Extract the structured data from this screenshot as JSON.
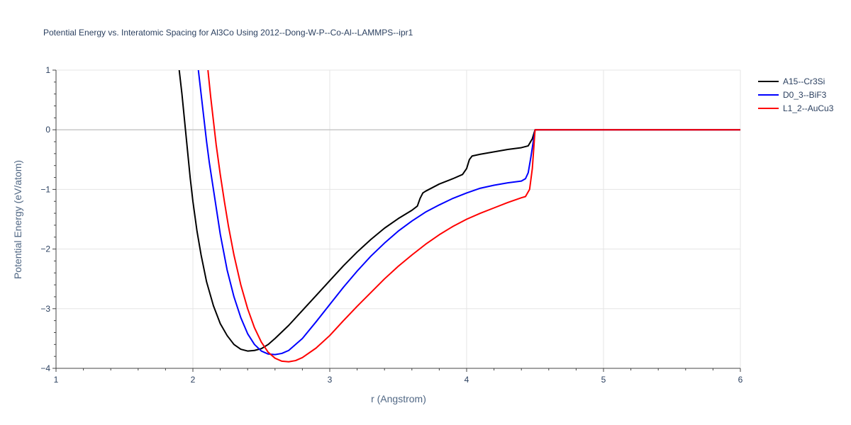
{
  "chart_data": {
    "type": "line",
    "title": "Potential Energy vs. Interatomic Spacing for Al3Co Using 2012--Dong-W-P--Co-Al--LAMMPS--ipr1",
    "xlabel": "r (Angstrom)",
    "ylabel": "Potential Energy (eV/atom)",
    "xlim": [
      1,
      6
    ],
    "ylim": [
      -4,
      1
    ],
    "xticks": [
      1,
      2,
      3,
      4,
      5,
      6
    ],
    "yticks": [
      1,
      0,
      -1,
      -2,
      -3,
      -4
    ],
    "ytick_labels": [
      "1",
      "0",
      "−1",
      "−2",
      "−3",
      "−4"
    ],
    "grid": true,
    "legend_position": "top-right",
    "series": [
      {
        "name": "A15--Cr3Si",
        "color": "#000000",
        "x": [
          1.9,
          1.92,
          1.95,
          1.98,
          2.0,
          2.03,
          2.06,
          2.1,
          2.15,
          2.2,
          2.25,
          2.3,
          2.35,
          2.4,
          2.45,
          2.5,
          2.55,
          2.6,
          2.7,
          2.8,
          2.9,
          3.0,
          3.1,
          3.2,
          3.3,
          3.4,
          3.5,
          3.6,
          3.64,
          3.66,
          3.68,
          3.7,
          3.8,
          3.9,
          3.97,
          4.0,
          4.02,
          4.04,
          4.1,
          4.2,
          4.3,
          4.4,
          4.45,
          4.48,
          4.5,
          5.0,
          5.5,
          6.0
        ],
        "y": [
          1.0,
          0.6,
          -0.1,
          -0.8,
          -1.2,
          -1.7,
          -2.1,
          -2.55,
          -2.95,
          -3.25,
          -3.45,
          -3.6,
          -3.68,
          -3.71,
          -3.7,
          -3.67,
          -3.6,
          -3.5,
          -3.28,
          -3.03,
          -2.78,
          -2.53,
          -2.28,
          -2.05,
          -1.84,
          -1.65,
          -1.49,
          -1.35,
          -1.28,
          -1.15,
          -1.06,
          -1.03,
          -0.91,
          -0.82,
          -0.75,
          -0.65,
          -0.5,
          -0.44,
          -0.41,
          -0.37,
          -0.33,
          -0.3,
          -0.27,
          -0.15,
          0.0,
          0.0,
          0.0,
          0.0
        ]
      },
      {
        "name": "D0_3--BiF3",
        "color": "#0000ff",
        "x": [
          2.04,
          2.06,
          2.08,
          2.1,
          2.12,
          2.15,
          2.18,
          2.2,
          2.25,
          2.3,
          2.35,
          2.4,
          2.45,
          2.5,
          2.55,
          2.6,
          2.65,
          2.7,
          2.8,
          2.9,
          3.0,
          3.1,
          3.2,
          3.3,
          3.4,
          3.5,
          3.6,
          3.7,
          3.8,
          3.9,
          4.0,
          4.1,
          4.2,
          4.3,
          4.4,
          4.43,
          4.45,
          4.47,
          4.5,
          5.0,
          5.5,
          6.0
        ],
        "y": [
          1.0,
          0.6,
          0.2,
          -0.2,
          -0.55,
          -1.0,
          -1.45,
          -1.75,
          -2.35,
          -2.8,
          -3.15,
          -3.42,
          -3.6,
          -3.71,
          -3.76,
          -3.77,
          -3.75,
          -3.7,
          -3.5,
          -3.22,
          -2.93,
          -2.64,
          -2.37,
          -2.12,
          -1.9,
          -1.7,
          -1.53,
          -1.38,
          -1.26,
          -1.15,
          -1.06,
          -0.98,
          -0.93,
          -0.89,
          -0.86,
          -0.82,
          -0.72,
          -0.45,
          0.0,
          0.0,
          0.0,
          0.0
        ]
      },
      {
        "name": "L1_2--AuCu3",
        "color": "#ff0000",
        "x": [
          2.11,
          2.13,
          2.15,
          2.17,
          2.2,
          2.23,
          2.26,
          2.3,
          2.35,
          2.4,
          2.45,
          2.5,
          2.55,
          2.6,
          2.65,
          2.7,
          2.75,
          2.8,
          2.9,
          3.0,
          3.1,
          3.2,
          3.3,
          3.4,
          3.5,
          3.6,
          3.7,
          3.8,
          3.9,
          4.0,
          4.1,
          4.2,
          4.3,
          4.4,
          4.43,
          4.46,
          4.48,
          4.5,
          5.0,
          5.5,
          6.0
        ],
        "y": [
          1.0,
          0.55,
          0.15,
          -0.25,
          -0.75,
          -1.2,
          -1.62,
          -2.1,
          -2.6,
          -3.0,
          -3.32,
          -3.56,
          -3.73,
          -3.83,
          -3.88,
          -3.89,
          -3.87,
          -3.82,
          -3.66,
          -3.45,
          -3.2,
          -2.96,
          -2.73,
          -2.5,
          -2.29,
          -2.1,
          -1.92,
          -1.76,
          -1.62,
          -1.5,
          -1.4,
          -1.31,
          -1.22,
          -1.14,
          -1.12,
          -1.0,
          -0.65,
          0.0,
          0.0,
          0.0,
          0.0
        ]
      }
    ]
  }
}
